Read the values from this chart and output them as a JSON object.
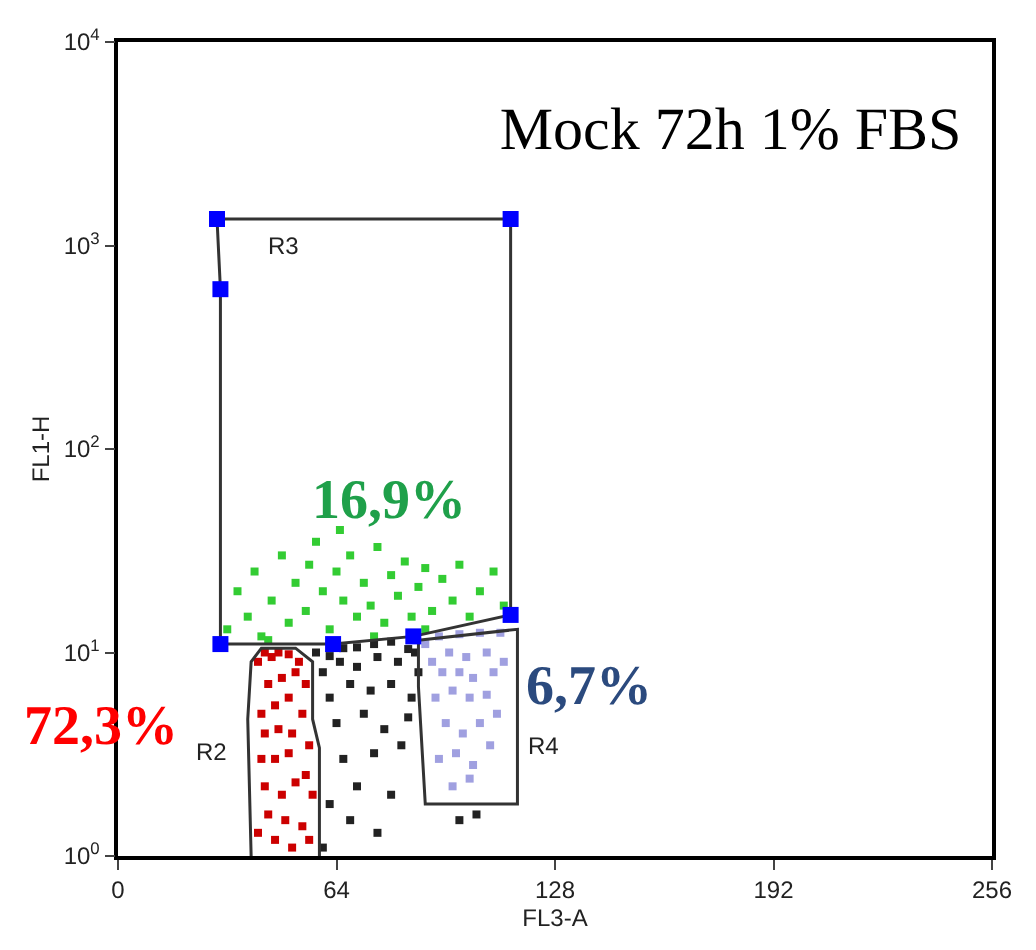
{
  "chart_data": {
    "type": "scatter",
    "title": "Mock 72h 1% FBS",
    "xlabel": "FL3-A",
    "ylabel": "FL1-H",
    "xlim": [
      0,
      256
    ],
    "xticks": [
      0,
      64,
      128,
      192,
      256
    ],
    "ylim": [
      1,
      10000
    ],
    "yticks": [
      {
        "value": 1,
        "label": "10$^{0}$"
      },
      {
        "value": 10,
        "label": "10$^{1}$"
      },
      {
        "value": 100,
        "label": "10$^{2}$"
      },
      {
        "value": 1000,
        "label": "10$^{3}$"
      },
      {
        "value": 10000,
        "label": "10$^{4}$"
      }
    ],
    "log": "y",
    "marker": "square",
    "series": [
      {
        "color": "#33cc33",
        "x": [
          32,
          35,
          38,
          40,
          42,
          45,
          48,
          50,
          52,
          55,
          58,
          60,
          62,
          64,
          66,
          68,
          70,
          72,
          74,
          76,
          78,
          80,
          82,
          84,
          86,
          88,
          90,
          92,
          95,
          98,
          100,
          103,
          106,
          110,
          113,
          56,
          75,
          44,
          65,
          90
        ],
        "values": [
          13,
          20,
          15,
          25,
          12,
          18,
          30,
          14,
          22,
          16,
          35,
          20,
          13,
          25,
          18,
          30,
          15,
          22,
          17,
          33,
          14,
          24,
          19,
          28,
          15,
          21,
          26,
          16,
          23,
          18,
          27,
          15,
          20,
          25,
          17,
          27,
          12,
          11.5,
          40,
          13
        ]
      },
      {
        "color": "#cc0000",
        "x": [
          41,
          43,
          45,
          47,
          50,
          53,
          44,
          48,
          52,
          55,
          42,
          46,
          50,
          54,
          43,
          47,
          51,
          56,
          42,
          46,
          50,
          55,
          43,
          48,
          52,
          57,
          44,
          49,
          54,
          46,
          51,
          56,
          41
        ],
        "values": [
          9,
          10,
          9.5,
          10,
          9.8,
          9,
          7,
          7.5,
          8,
          7,
          5,
          5.5,
          6,
          5,
          4,
          4.2,
          4,
          3.5,
          3,
          3,
          3.2,
          2.5,
          2.2,
          2,
          2.3,
          2,
          1.6,
          1.5,
          1.4,
          1.2,
          1.1,
          1.2,
          1.3
        ]
      },
      {
        "color": "#222222",
        "x": [
          58,
          62,
          66,
          70,
          75,
          80,
          85,
          60,
          65,
          70,
          76,
          82,
          87,
          62,
          68,
          74,
          80,
          86,
          64,
          72,
          78,
          85,
          66,
          75,
          83,
          70,
          80,
          62,
          68,
          76,
          60,
          88,
          100,
          105
        ],
        "values": [
          10,
          9.6,
          10.5,
          10.6,
          11,
          11.3,
          10.4,
          8,
          9,
          8.5,
          9.5,
          9,
          10,
          6,
          7,
          6.5,
          7,
          6,
          4.5,
          5,
          4.2,
          4.8,
          3,
          3.2,
          3.5,
          2.2,
          2,
          1.8,
          1.5,
          1.3,
          1.1,
          8,
          1.5,
          1.6
        ]
      },
      {
        "type": "line",
        "marker": "none",
        "color": "#333333",
        "x": [
          59,
          59,
          57,
          57,
          52,
          42,
          39,
          38,
          39
        ],
        "values": [
          1,
          3.4,
          4.7,
          9,
          10.5,
          10.5,
          9,
          4.7,
          1
        ]
      },
      {
        "color": "#a0a0e0",
        "x": [
          90,
          94,
          100,
          106,
          112,
          92,
          97,
          102,
          108,
          113,
          95,
          100,
          104,
          110,
          93,
          98,
          103,
          108,
          96,
          101,
          106,
          111,
          94,
          99,
          104,
          109,
          98,
          103
        ],
        "values": [
          11,
          12,
          12.3,
          12.5,
          12.5,
          9,
          10,
          9.5,
          10,
          9,
          8,
          8,
          7.5,
          8,
          6,
          6.5,
          6,
          6.2,
          4.5,
          4,
          4.5,
          5,
          3,
          3.2,
          2.8,
          3.5,
          2.2,
          2.4
        ]
      }
    ],
    "annotations": [
      "R3",
      "R2",
      "R4",
      "16,9%",
      "72,3%",
      "6,7%"
    ]
  }
}
